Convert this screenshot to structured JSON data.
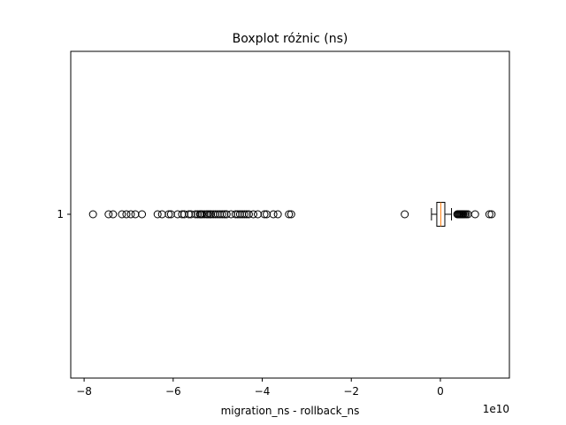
{
  "chart_data": {
    "type": "boxplot",
    "orientation": "horizontal",
    "title": "Boxplot różnic (ns)",
    "xlabel": "migration_ns - rollback_ns",
    "ylabel": "",
    "offset_text": "1e10",
    "x_scale": 10000000000.0,
    "xlim": [
      -8.3,
      1.55
    ],
    "x_ticks": [
      -8,
      -6,
      -4,
      -2,
      0
    ],
    "x_tick_labels": [
      "−8",
      "−6",
      "−4",
      "−2",
      "0"
    ],
    "y_tick_labels": [
      "1"
    ],
    "box": {
      "q1": -0.08,
      "median": 0.01,
      "q3": 0.1,
      "whisker_low": -0.2,
      "whisker_high": 0.25
    },
    "outliers": [
      -7.8,
      -7.45,
      -7.35,
      -7.15,
      -7.05,
      -6.95,
      -6.85,
      -6.7,
      -6.35,
      -6.25,
      -6.1,
      -6.05,
      -5.9,
      -5.8,
      -5.75,
      -5.65,
      -5.6,
      -5.5,
      -5.45,
      -5.4,
      -5.38,
      -5.35,
      -5.3,
      -5.25,
      -5.22,
      -5.18,
      -5.15,
      -5.1,
      -5.05,
      -5.0,
      -4.95,
      -4.9,
      -4.85,
      -4.8,
      -4.7,
      -4.6,
      -4.55,
      -4.5,
      -4.45,
      -4.4,
      -4.35,
      -4.3,
      -4.2,
      -4.1,
      -3.95,
      -3.9,
      -3.75,
      -3.65,
      -3.4,
      -3.35,
      -0.8,
      0.38,
      0.4,
      0.42,
      0.44,
      0.46,
      0.48,
      0.5,
      0.52,
      0.55,
      0.58,
      0.62,
      0.78,
      1.1,
      1.15
    ],
    "colors": {
      "box": "#000000",
      "median": "#ff7f0e",
      "outlier": "#000000",
      "background": "#ffffff"
    }
  }
}
